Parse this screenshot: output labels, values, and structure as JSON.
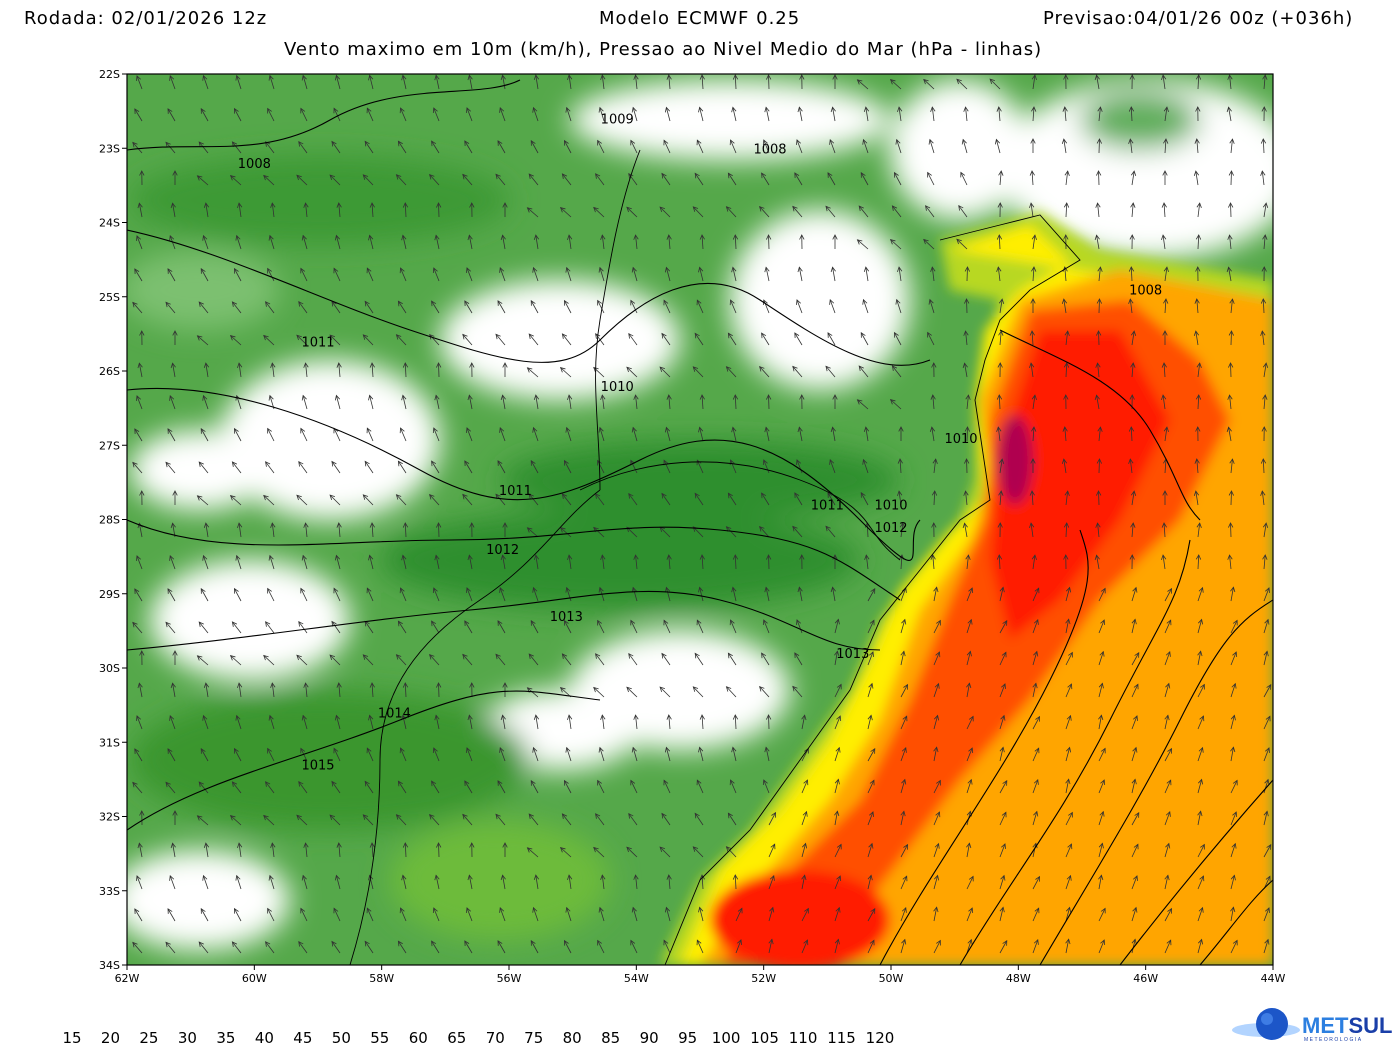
{
  "header": {
    "run": "Rodada: 02/01/2026 12z",
    "model": "Modelo ECMWF 0.25",
    "forecast": "Previsao:04/01/26 00z (+036h)",
    "subtitle": "Vento maximo em 10m (km/h), Pressao ao Nivel Medio do Mar (hPa - linhas)"
  },
  "map": {
    "lon_range": [
      -62,
      -44
    ],
    "lat_range": [
      -34,
      -22
    ],
    "lat_labels": [
      "22S",
      "23S",
      "24S",
      "25S",
      "26S",
      "27S",
      "28S",
      "29S",
      "30S",
      "31S",
      "32S",
      "33S",
      "34S"
    ],
    "lon_labels": [
      "62W",
      "60W",
      "58W",
      "56W",
      "54W",
      "52W",
      "50W",
      "48W",
      "46W",
      "44W"
    ],
    "isobars": [
      {
        "label": "1009",
        "lon": -54.3,
        "lat": -22.6
      },
      {
        "label": "1008",
        "lon": -60.0,
        "lat": -23.2
      },
      {
        "label": "1008",
        "lon": -51.9,
        "lat": -23.0
      },
      {
        "label": "1008",
        "lon": -46.0,
        "lat": -24.9
      },
      {
        "label": "1011",
        "lon": -59.0,
        "lat": -25.6
      },
      {
        "label": "1010",
        "lon": -54.3,
        "lat": -26.2
      },
      {
        "label": "1010",
        "lon": -48.9,
        "lat": -26.9
      },
      {
        "label": "1011",
        "lon": -55.9,
        "lat": -27.6
      },
      {
        "label": "1011",
        "lon": -51.0,
        "lat": -27.8
      },
      {
        "label": "1010",
        "lon": -50.0,
        "lat": -27.8
      },
      {
        "label": "1012",
        "lon": -50.0,
        "lat": -28.1
      },
      {
        "label": "1012",
        "lon": -56.1,
        "lat": -28.4
      },
      {
        "label": "1013",
        "lon": -55.1,
        "lat": -29.3
      },
      {
        "label": "1013",
        "lon": -50.6,
        "lat": -29.8
      },
      {
        "label": "1014",
        "lon": -57.8,
        "lat": -30.6
      },
      {
        "label": "1015",
        "lon": -59.0,
        "lat": -31.3
      }
    ]
  },
  "colorbar": {
    "labels": [
      "15",
      "20",
      "25",
      "30",
      "35",
      "40",
      "45",
      "50",
      "55",
      "60",
      "65",
      "70",
      "75",
      "80",
      "85",
      "90",
      "95",
      "100",
      "105",
      "110",
      "115",
      "120"
    ],
    "colors": [
      "#ffffff",
      "#d6ecd2",
      "#9fd19a",
      "#5fae5a",
      "#2f8f2f",
      "#0a7d0a",
      "#3f9f10",
      "#7fbf10",
      "#c8e010",
      "#ffff00",
      "#ffd000",
      "#ffa500",
      "#ff7a00",
      "#ff4000",
      "#ff0000",
      "#e00030",
      "#b00060",
      "#901080",
      "#b050a0",
      "#f0a0d0",
      "#ff80e0",
      "#ff00ff"
    ]
  },
  "logo": {
    "text": "METSUL",
    "sub": "METEOROLOGIA"
  }
}
